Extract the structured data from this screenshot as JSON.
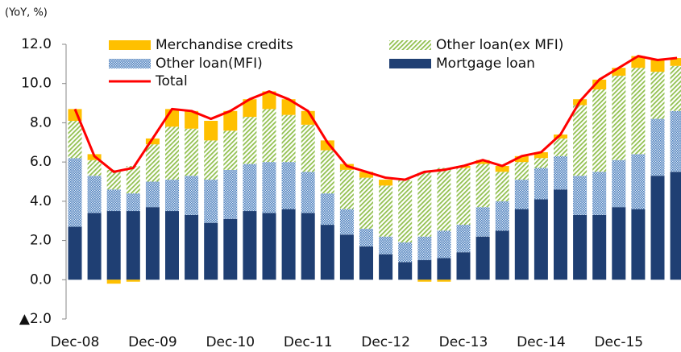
{
  "chart_data": {
    "type": "stacked_bar_line",
    "axis_label": "(YoY, %)",
    "categories": [
      "Dec-08",
      null,
      null,
      null,
      "Dec-09",
      null,
      null,
      null,
      "Dec-10",
      null,
      null,
      null,
      "Dec-11",
      null,
      null,
      null,
      "Dec-12",
      null,
      null,
      null,
      "Dec-13",
      null,
      null,
      null,
      "Dec-14",
      null,
      null,
      null,
      "Dec-15",
      null,
      null,
      null
    ],
    "series": [
      {
        "name": "Mortgage loan",
        "color": "#1f3f73",
        "pattern": "solid",
        "values": [
          2.7,
          3.4,
          3.5,
          3.5,
          3.7,
          3.5,
          3.3,
          2.9,
          3.1,
          3.5,
          3.4,
          3.6,
          3.4,
          2.8,
          2.3,
          1.7,
          1.3,
          0.9,
          1.0,
          1.1,
          1.4,
          2.2,
          2.5,
          3.6,
          4.1,
          4.6,
          3.3,
          3.3,
          3.7,
          3.6,
          5.3,
          5.5
        ]
      },
      {
        "name": "Other loan(MFI)",
        "color": "#4f81bd",
        "pattern": "dots",
        "values": [
          3.5,
          1.9,
          1.1,
          0.9,
          1.3,
          1.6,
          2.0,
          2.2,
          2.5,
          2.4,
          2.6,
          2.4,
          2.1,
          1.6,
          1.3,
          0.9,
          0.9,
          1.0,
          1.2,
          1.4,
          1.4,
          1.5,
          1.5,
          1.5,
          1.6,
          1.7,
          2.0,
          2.2,
          2.4,
          2.8,
          2.9,
          3.1
        ]
      },
      {
        "name": "Other loan(ex MFI)",
        "color": "#92c050",
        "pattern": "hatch",
        "values": [
          1.9,
          0.8,
          1.0,
          1.4,
          1.9,
          2.7,
          2.4,
          2.0,
          2.0,
          2.4,
          2.7,
          2.4,
          2.4,
          2.2,
          2.0,
          2.6,
          2.6,
          3.2,
          3.3,
          3.2,
          2.9,
          2.2,
          1.5,
          0.9,
          0.5,
          0.9,
          3.6,
          4.2,
          4.3,
          4.4,
          2.4,
          2.3
        ]
      },
      {
        "name": "Merchandise credits",
        "color": "#ffc000",
        "pattern": "solid",
        "values": [
          0.6,
          0.3,
          -0.2,
          -0.1,
          0.3,
          0.9,
          0.9,
          1.0,
          1.0,
          0.9,
          0.9,
          0.8,
          0.7,
          0.5,
          0.3,
          0.3,
          0.3,
          0.0,
          -0.1,
          -0.1,
          0.1,
          0.2,
          0.3,
          0.3,
          0.3,
          0.2,
          0.3,
          0.5,
          0.4,
          0.6,
          0.6,
          0.4
        ]
      },
      {
        "name": "Total",
        "color": "#ff0000",
        "line": true,
        "values": [
          8.7,
          6.3,
          5.5,
          5.7,
          7.2,
          8.7,
          8.6,
          8.2,
          8.6,
          9.2,
          9.6,
          9.2,
          8.6,
          7.0,
          5.8,
          5.5,
          5.2,
          5.1,
          5.5,
          5.6,
          5.8,
          6.1,
          5.8,
          6.3,
          6.5,
          7.4,
          9.1,
          10.2,
          10.8,
          11.4,
          11.2,
          11.3
        ]
      }
    ],
    "ylim": [
      -2,
      12
    ],
    "yticks": [
      {
        "value": -2,
        "label": "▲2.0"
      },
      {
        "value": 0,
        "label": "0.0"
      },
      {
        "value": 2,
        "label": "2.0"
      },
      {
        "value": 4,
        "label": "4.0"
      },
      {
        "value": 6,
        "label": "6.0"
      },
      {
        "value": 8,
        "label": "8.0"
      },
      {
        "value": 10,
        "label": "10.0"
      },
      {
        "value": 12,
        "label": "12.0"
      }
    ],
    "grid": false
  }
}
